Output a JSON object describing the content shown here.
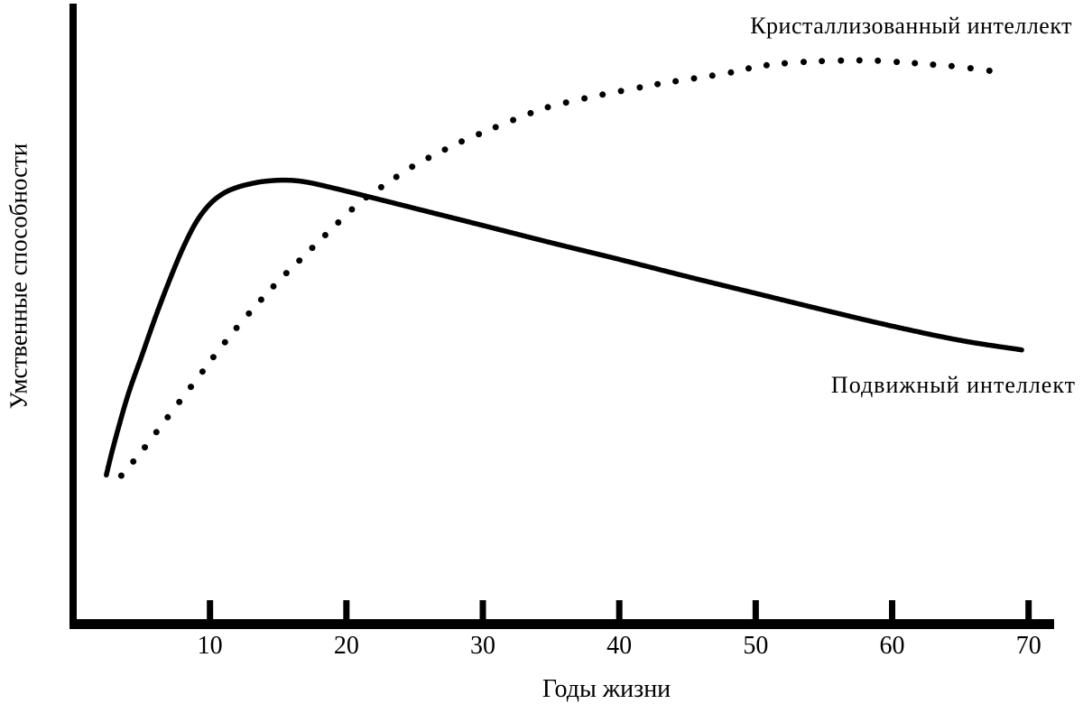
{
  "figure": {
    "background_color": "#ffffff",
    "ink_color": "#000000"
  },
  "chart_data": {
    "type": "line",
    "title": "",
    "xlabel": "Годы жизни",
    "ylabel": "Умственные способности",
    "xlim": [
      0,
      72
    ],
    "ylim": [
      0,
      100
    ],
    "x_ticks": [
      10,
      20,
      30,
      40,
      50,
      60,
      70
    ],
    "y_ticks": [],
    "grid": false,
    "legend_position": "inline-annotations",
    "series": [
      {
        "name": "Кристаллизованный интеллект",
        "style": "dotted",
        "points": [
          [
            3.5,
            24.4
          ],
          [
            5,
            28.5
          ],
          [
            7,
            34.5
          ],
          [
            9,
            40.5
          ],
          [
            11,
            46.5
          ],
          [
            13,
            52
          ],
          [
            15,
            57
          ],
          [
            17,
            61.5
          ],
          [
            19,
            66
          ],
          [
            21,
            70.3
          ],
          [
            23,
            73.5
          ],
          [
            25,
            76.5
          ],
          [
            28,
            80
          ],
          [
            30,
            82
          ],
          [
            33,
            84.8
          ],
          [
            35,
            86.4
          ],
          [
            38,
            88
          ],
          [
            40,
            88.9
          ],
          [
            43,
            90.2
          ],
          [
            45,
            90.9
          ],
          [
            48,
            92
          ],
          [
            50,
            93
          ],
          [
            52,
            93.6
          ],
          [
            55,
            94
          ],
          [
            58,
            94.1
          ],
          [
            60,
            93.9
          ],
          [
            63,
            93.4
          ],
          [
            65,
            93
          ],
          [
            68,
            92.1
          ]
        ]
      },
      {
        "name": "Подвижный интеллект",
        "style": "solid",
        "points": [
          [
            2.4,
            24.5
          ],
          [
            3,
            30
          ],
          [
            4,
            38
          ],
          [
            5,
            44.5
          ],
          [
            6,
            51
          ],
          [
            7,
            57
          ],
          [
            8,
            62.5
          ],
          [
            9,
            67
          ],
          [
            10,
            70
          ],
          [
            11,
            71.8
          ],
          [
            12,
            72.8
          ],
          [
            13,
            73.4
          ],
          [
            14,
            73.8
          ],
          [
            15.5,
            74
          ],
          [
            17,
            73.7
          ],
          [
            19,
            72.7
          ],
          [
            22,
            71.0
          ],
          [
            26,
            68.7
          ],
          [
            30,
            66.4
          ],
          [
            35,
            63.5
          ],
          [
            40,
            60.7
          ],
          [
            45,
            57.8
          ],
          [
            50,
            55.0
          ],
          [
            55,
            52.2
          ],
          [
            60,
            49.5
          ],
          [
            65,
            47.1
          ],
          [
            69.5,
            45.5
          ]
        ]
      }
    ]
  }
}
